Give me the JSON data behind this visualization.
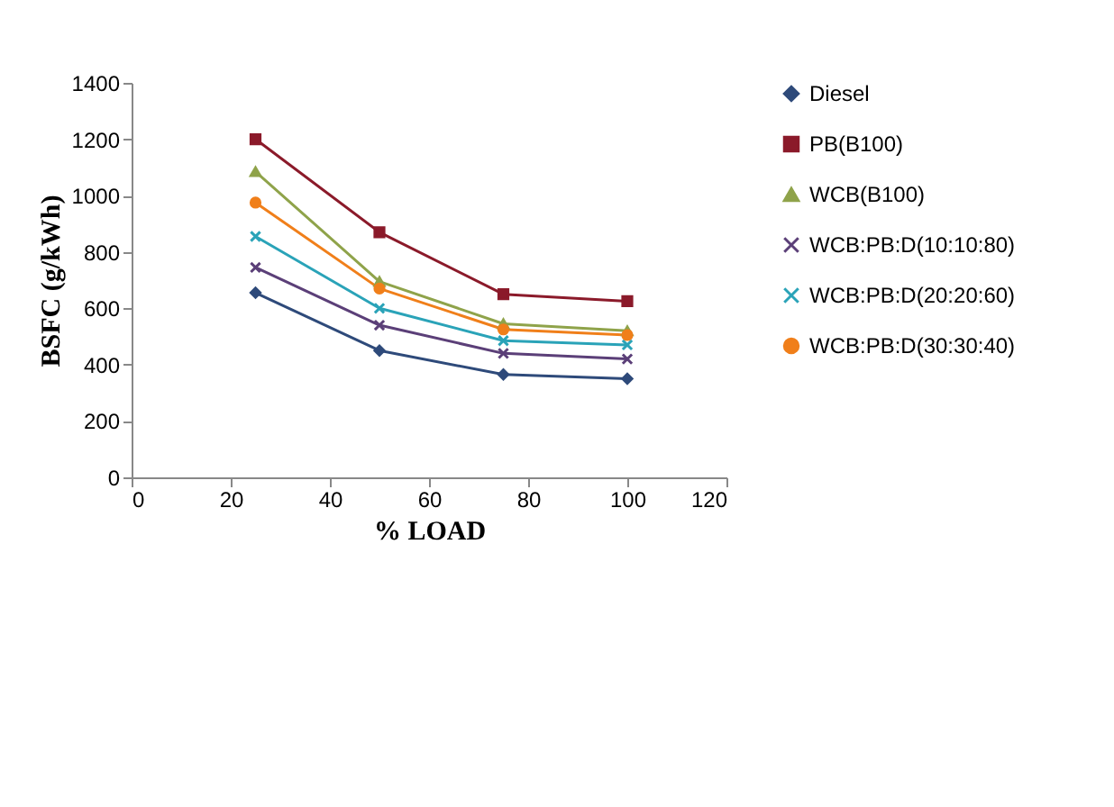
{
  "chart_data": {
    "type": "line",
    "xlabel": "% LOAD",
    "ylabel": "BSFC (g/kWh)",
    "x": [
      25,
      50,
      75,
      100
    ],
    "series": [
      {
        "name": "Diesel",
        "color": "#2e4a7a",
        "marker": "diamond",
        "values": [
          655,
          450,
          365,
          350
        ]
      },
      {
        "name": "PB(B100)",
        "color": "#8b1a2a",
        "marker": "square",
        "values": [
          1200,
          870,
          650,
          625
        ]
      },
      {
        "name": "WCB(B100)",
        "color": "#8fa34a",
        "marker": "triangle",
        "values": [
          1085,
          695,
          545,
          520
        ]
      },
      {
        "name": "WCB:PB:D(10:10:80)",
        "color": "#5b3f78",
        "marker": "cross",
        "values": [
          745,
          540,
          440,
          420
        ]
      },
      {
        "name": "WCB:PB:D(20:20:60)",
        "color": "#2aa3b8",
        "marker": "cross",
        "values": [
          855,
          600,
          485,
          470
        ]
      },
      {
        "name": "WCB:PB:D(30:30:40)",
        "color": "#f07f1a",
        "marker": "circle",
        "values": [
          975,
          670,
          525,
          505
        ]
      }
    ],
    "xlim": [
      0,
      120
    ],
    "xticks": [
      0,
      20,
      40,
      60,
      80,
      100,
      120
    ],
    "ylim": [
      0,
      1400
    ],
    "yticks": [
      0,
      200,
      400,
      600,
      800,
      1000,
      1200,
      1400
    ],
    "grid": false,
    "legend": "right",
    "line_style": "solid"
  }
}
